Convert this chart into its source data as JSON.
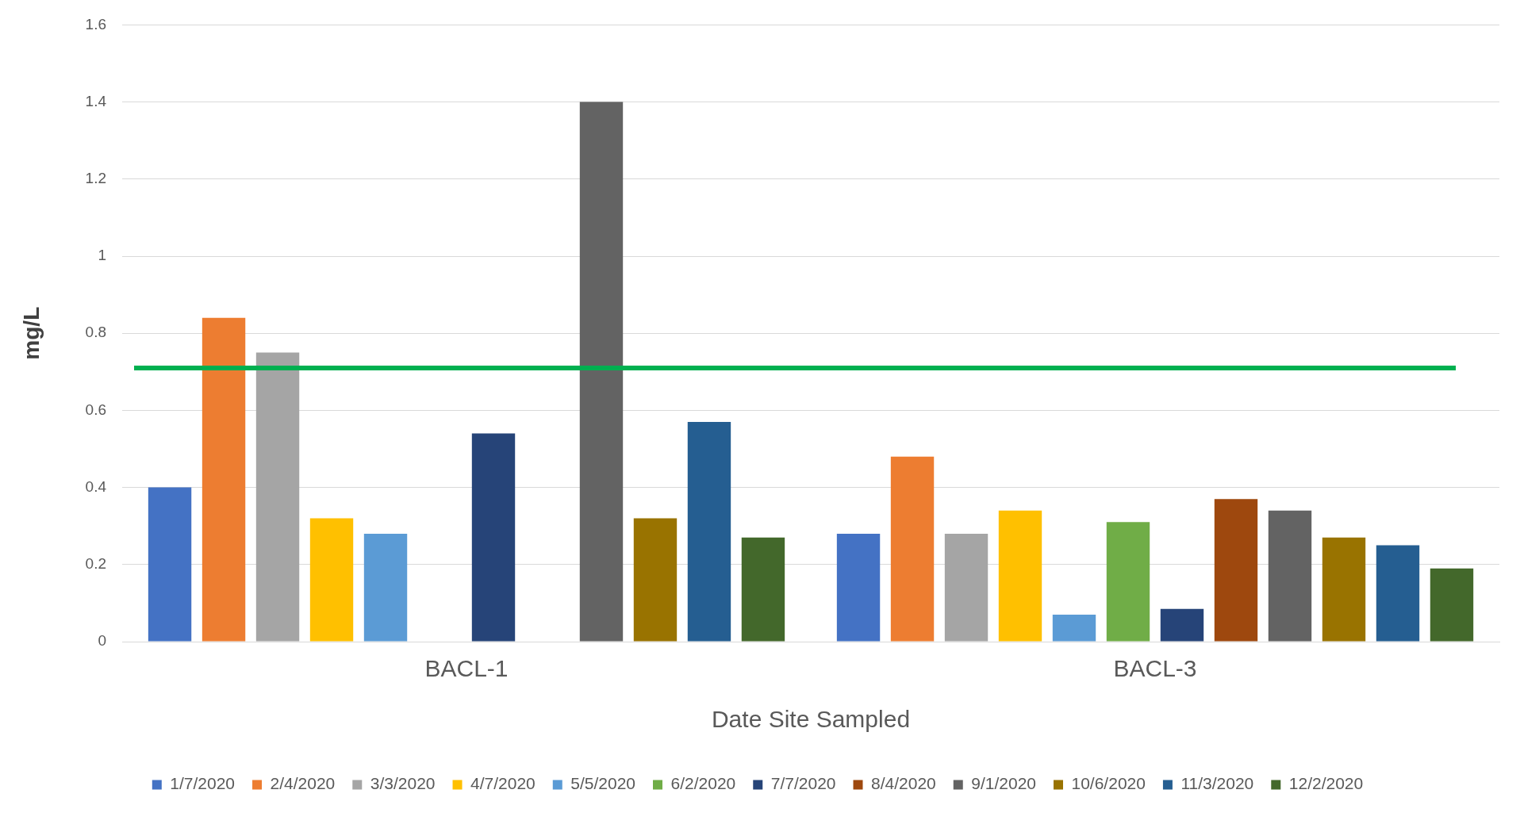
{
  "chart_data": {
    "type": "bar",
    "xlabel": "Date Site Sampled",
    "ylabel": "mg/L",
    "categories": [
      "BACL-1",
      "BACL-3"
    ],
    "series": [
      {
        "name": "1/7/2020",
        "color": "#4472c4",
        "values": [
          0.4,
          0.28
        ]
      },
      {
        "name": "2/4/2020",
        "color": "#ed7d31",
        "values": [
          0.84,
          0.48
        ]
      },
      {
        "name": "3/3/2020",
        "color": "#a5a5a5",
        "values": [
          0.75,
          0.28
        ]
      },
      {
        "name": "4/7/2020",
        "color": "#ffc000",
        "values": [
          0.32,
          0.34
        ]
      },
      {
        "name": "5/5/2020",
        "color": "#5b9bd5",
        "values": [
          0.28,
          0.07
        ]
      },
      {
        "name": "6/2/2020",
        "color": "#70ad47",
        "values": [
          null,
          0.31
        ]
      },
      {
        "name": "7/7/2020",
        "color": "#264478",
        "values": [
          0.54,
          0.085
        ]
      },
      {
        "name": "8/4/2020",
        "color": "#9e480e",
        "values": [
          null,
          0.37
        ]
      },
      {
        "name": "9/1/2020",
        "color": "#636363",
        "values": [
          1.4,
          0.34
        ]
      },
      {
        "name": "10/6/2020",
        "color": "#997300",
        "values": [
          0.32,
          0.27
        ]
      },
      {
        "name": "11/3/2020",
        "color": "#255e91",
        "values": [
          0.57,
          0.25
        ]
      },
      {
        "name": "12/2/2020",
        "color": "#43682b",
        "values": [
          0.27,
          0.19
        ]
      }
    ],
    "ylim": [
      0,
      1.6
    ],
    "yticks": [
      0,
      0.2,
      0.4,
      0.6,
      0.8,
      1,
      1.2,
      1.4,
      1.6
    ],
    "grid": "y",
    "legend": "bottom",
    "ref_lines": [
      {
        "axis": "y",
        "value": 0.71,
        "color": "#00b050"
      }
    ]
  }
}
